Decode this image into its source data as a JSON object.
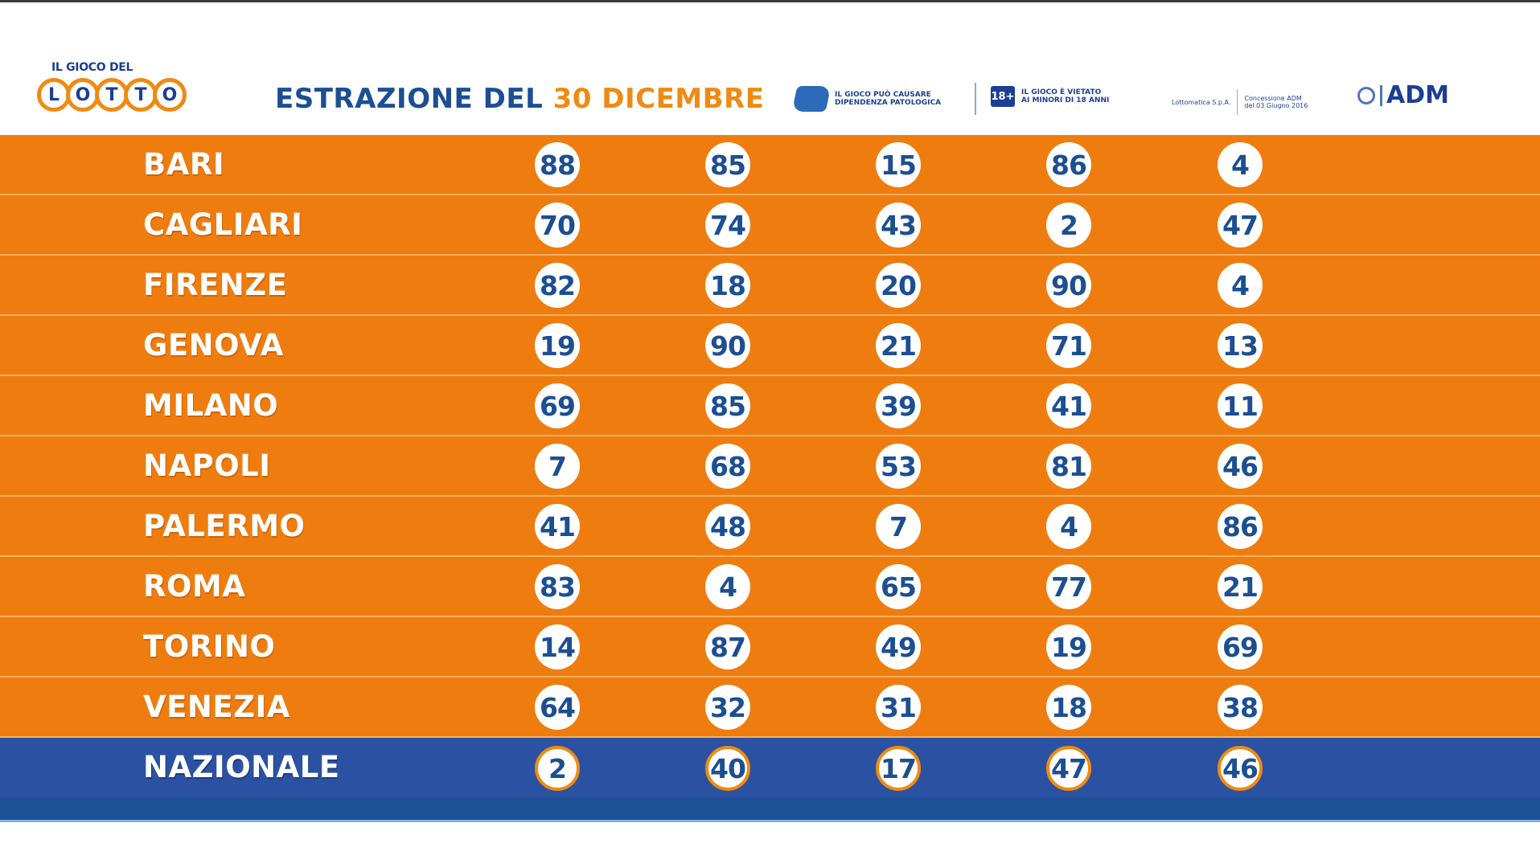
{
  "header": {
    "logo_caption": "IL GIOCO DEL",
    "logo_letters": [
      "L",
      "O",
      "T",
      "T",
      "O"
    ],
    "title_prefix": "ESTRAZIONE DEL",
    "title_date": "30 DICEMBRE",
    "notice_pathology": "IL GIOCO PUÒ CAUSARE\nDIPENDENZA PATOLOGICA",
    "notice_minors_icon": "18+",
    "notice_minors": "IL GIOCO È VIETATO\nAI MINORI DI 18 ANNI",
    "operator_text": "Lottomatica S.p.A.",
    "concession_text": "Concessione ADM\ndel 03 Giugno 2016",
    "adm_label": "ADM"
  },
  "draws": [
    {
      "city": "BARI",
      "numbers": [
        "88",
        "85",
        "15",
        "86",
        "4"
      ]
    },
    {
      "city": "CAGLIARI",
      "numbers": [
        "70",
        "74",
        "43",
        "2",
        "47"
      ]
    },
    {
      "city": "FIRENZE",
      "numbers": [
        "82",
        "18",
        "20",
        "90",
        "4"
      ]
    },
    {
      "city": "GENOVA",
      "numbers": [
        "19",
        "90",
        "21",
        "71",
        "13"
      ]
    },
    {
      "city": "MILANO",
      "numbers": [
        "69",
        "85",
        "39",
        "41",
        "11"
      ]
    },
    {
      "city": "NAPOLI",
      "numbers": [
        "7",
        "68",
        "53",
        "81",
        "46"
      ]
    },
    {
      "city": "PALERMO",
      "numbers": [
        "41",
        "48",
        "7",
        "4",
        "86"
      ]
    },
    {
      "city": "ROMA",
      "numbers": [
        "83",
        "4",
        "65",
        "77",
        "21"
      ]
    },
    {
      "city": "TORINO",
      "numbers": [
        "14",
        "87",
        "49",
        "19",
        "69"
      ]
    },
    {
      "city": "VENEZIA",
      "numbers": [
        "64",
        "32",
        "31",
        "18",
        "38"
      ]
    },
    {
      "city": "NAZIONALE",
      "numbers": [
        "2",
        "40",
        "17",
        "47",
        "46"
      ]
    }
  ],
  "colors": {
    "wheel_row": "#ef7c0e",
    "national_row": "#2b52a2",
    "number_text": "#1c4f92",
    "accent": "#ef8a12"
  }
}
